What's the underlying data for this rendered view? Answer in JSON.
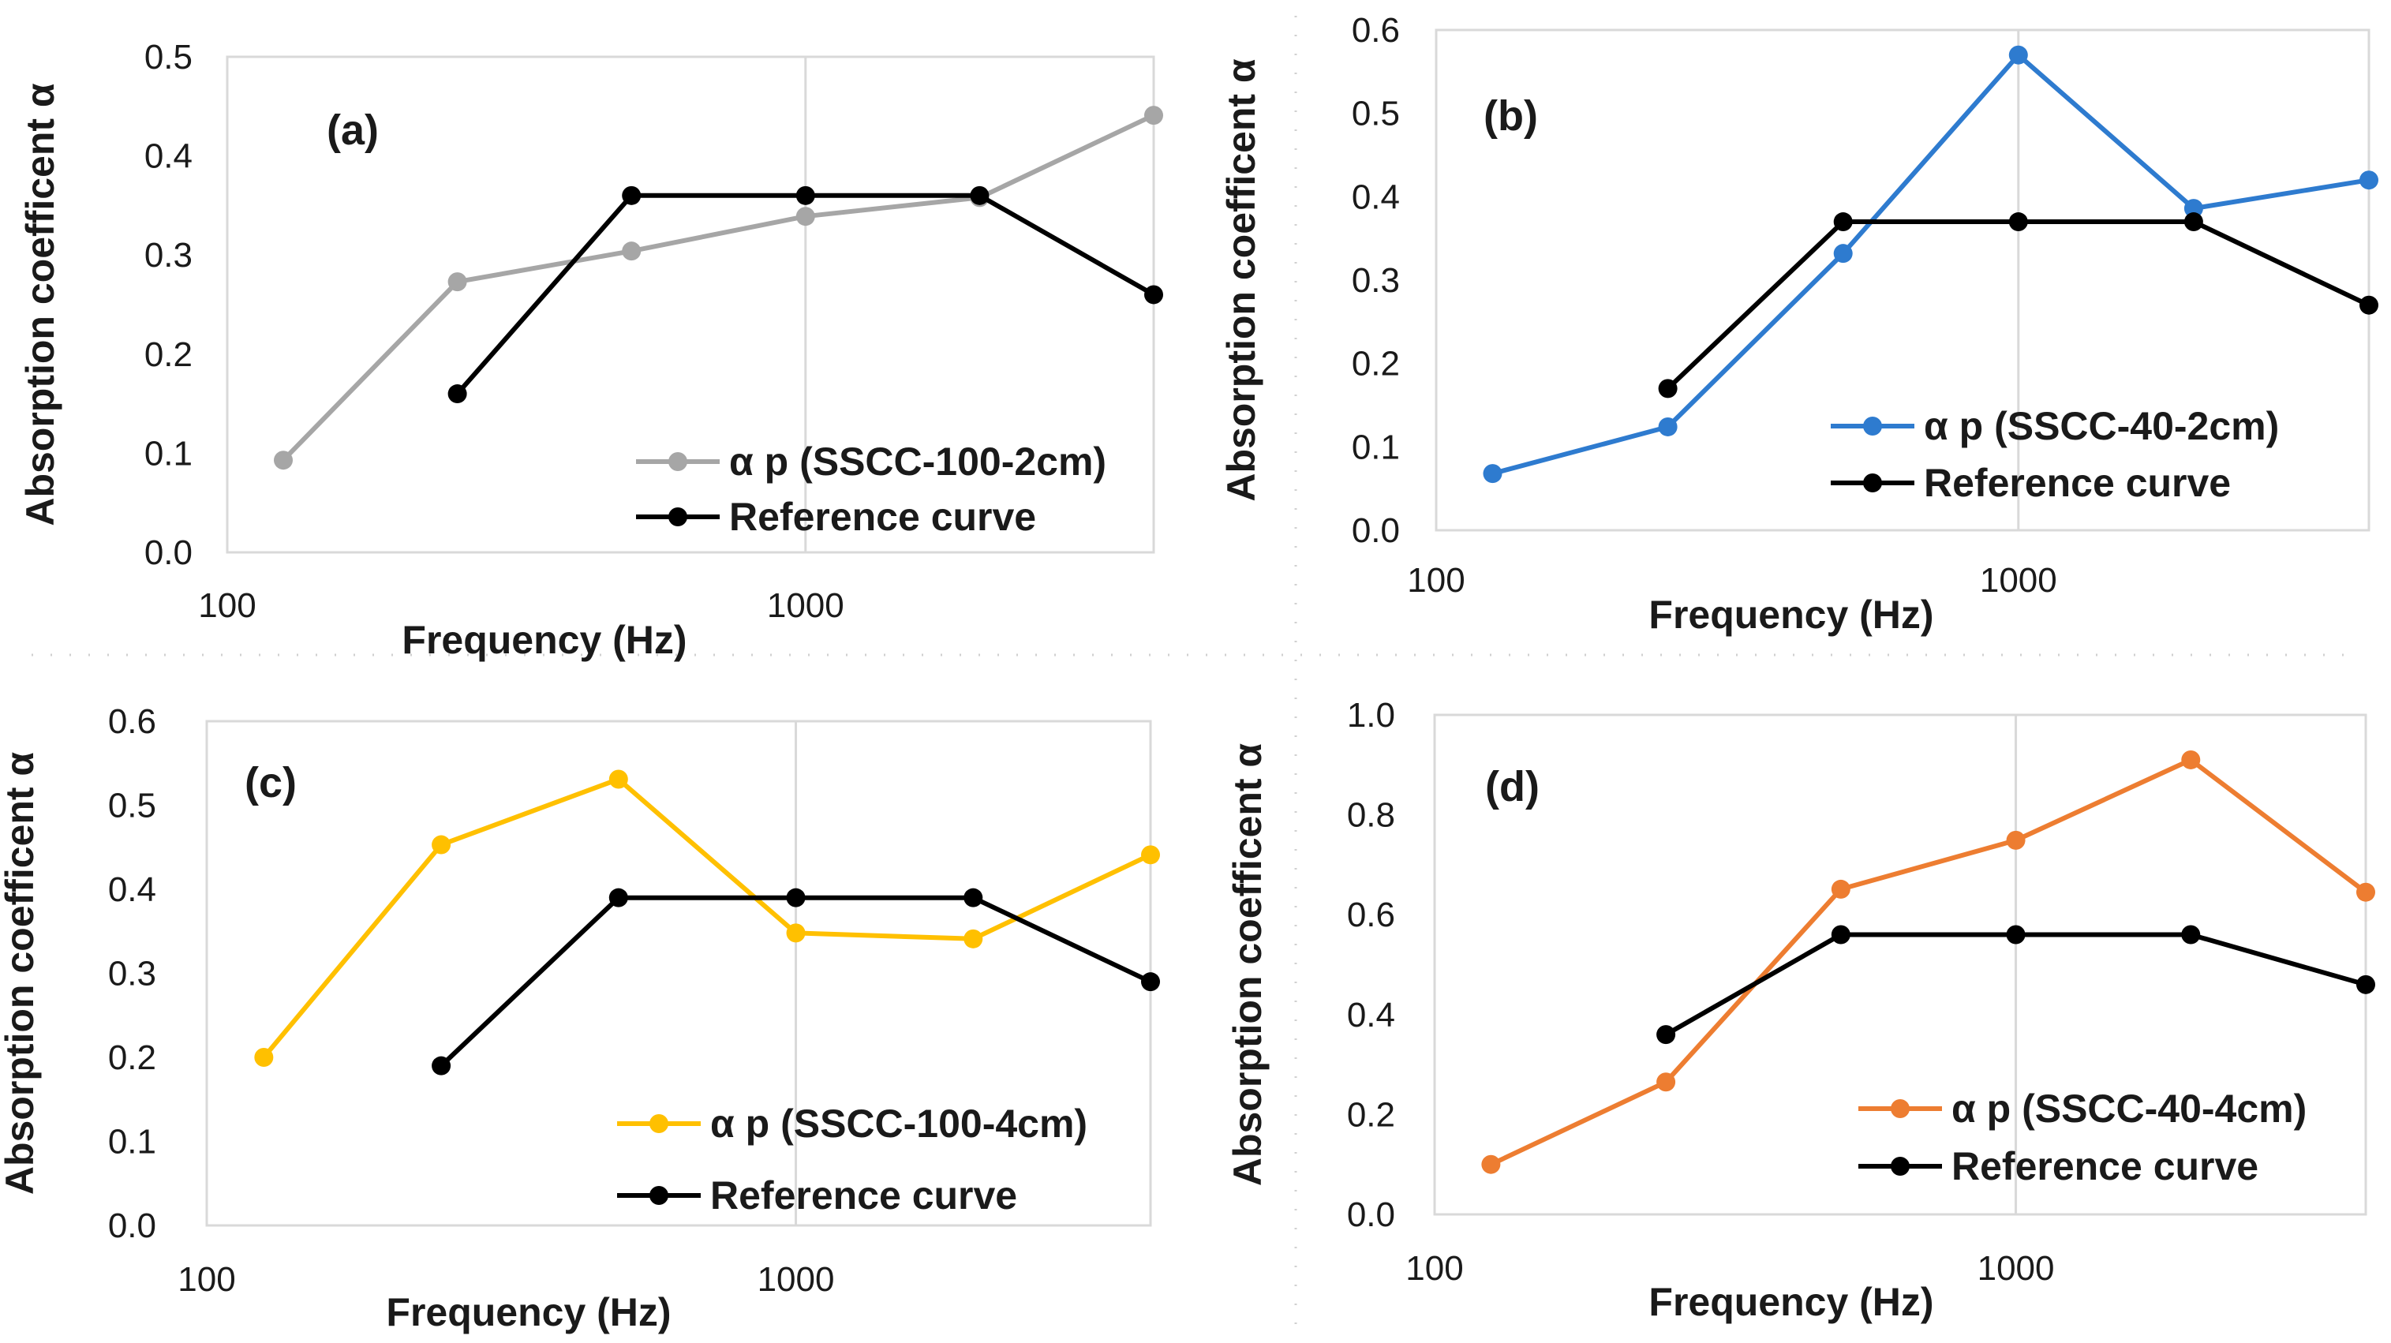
{
  "chart_data": [
    {
      "type": "line",
      "panel_label": "(a)",
      "xlabel": "Frequency (Hz)",
      "ylabel": "Absorption coefficent α",
      "xscale": "log",
      "xlim": [
        100,
        4000
      ],
      "ylim": [
        0,
        0.5
      ],
      "xticks": [
        {
          "v": 100,
          "label": "100"
        },
        {
          "v": 1000,
          "label": "1000"
        }
      ],
      "yticks": [
        {
          "v": 0.0,
          "label": "0.0"
        },
        {
          "v": 0.1,
          "label": "0.1"
        },
        {
          "v": 0.2,
          "label": "0.2"
        },
        {
          "v": 0.3,
          "label": "0.3"
        },
        {
          "v": 0.4,
          "label": "0.4"
        },
        {
          "v": 0.5,
          "label": "0.5"
        }
      ],
      "legend_position": "bottom-right",
      "series": [
        {
          "name": "α p (SSCC-100-2cm)",
          "color": "#A6A6A6",
          "x": [
            125,
            250,
            500,
            1000,
            2000,
            4000
          ],
          "values": [
            0.093,
            0.273,
            0.304,
            0.339,
            0.358,
            0.441
          ]
        },
        {
          "name": "Reference curve",
          "color": "#000000",
          "x": [
            250,
            500,
            1000,
            2000,
            4000
          ],
          "values": [
            0.16,
            0.36,
            0.36,
            0.36,
            0.26
          ]
        }
      ]
    },
    {
      "type": "line",
      "panel_label": "(b)",
      "xlabel": "Frequency (Hz)",
      "ylabel": "Absorption coefficent α",
      "xscale": "log",
      "xlim": [
        100,
        4000
      ],
      "ylim": [
        0,
        0.6
      ],
      "xticks": [
        {
          "v": 100,
          "label": "100"
        },
        {
          "v": 1000,
          "label": "1000"
        }
      ],
      "yticks": [
        {
          "v": 0.0,
          "label": "0.0"
        },
        {
          "v": 0.1,
          "label": "0.1"
        },
        {
          "v": 0.2,
          "label": "0.2"
        },
        {
          "v": 0.3,
          "label": "0.3"
        },
        {
          "v": 0.4,
          "label": "0.4"
        },
        {
          "v": 0.5,
          "label": "0.5"
        },
        {
          "v": 0.6,
          "label": "0.6"
        }
      ],
      "legend_position": "bottom-right",
      "series": [
        {
          "name": "α p (SSCC-40-2cm)",
          "color": "#2E7BCF",
          "x": [
            125,
            250,
            500,
            1000,
            2000,
            4000
          ],
          "values": [
            0.068,
            0.124,
            0.332,
            0.57,
            0.386,
            0.42
          ]
        },
        {
          "name": "Reference curve",
          "color": "#000000",
          "x": [
            250,
            500,
            1000,
            2000,
            4000
          ],
          "values": [
            0.17,
            0.37,
            0.37,
            0.37,
            0.27
          ]
        }
      ]
    },
    {
      "type": "line",
      "panel_label": "(c)",
      "xlabel": "Frequency (Hz)",
      "ylabel": "Absorption coefficent α",
      "xscale": "log",
      "xlim": [
        100,
        4000
      ],
      "ylim": [
        0,
        0.6
      ],
      "xticks": [
        {
          "v": 100,
          "label": "100"
        },
        {
          "v": 1000,
          "label": "1000"
        }
      ],
      "yticks": [
        {
          "v": 0.0,
          "label": "0.0"
        },
        {
          "v": 0.1,
          "label": "0.1"
        },
        {
          "v": 0.2,
          "label": "0.2"
        },
        {
          "v": 0.3,
          "label": "0.3"
        },
        {
          "v": 0.4,
          "label": "0.4"
        },
        {
          "v": 0.5,
          "label": "0.5"
        },
        {
          "v": 0.6,
          "label": "0.6"
        }
      ],
      "legend_position": "bottom-right",
      "series": [
        {
          "name": "α p (SSCC-100-4cm)",
          "color": "#FFC000",
          "x": [
            125,
            250,
            500,
            1000,
            2000,
            4000
          ],
          "values": [
            0.2,
            0.453,
            0.531,
            0.348,
            0.341,
            0.441
          ]
        },
        {
          "name": "Reference curve",
          "color": "#000000",
          "x": [
            250,
            500,
            1000,
            2000,
            4000
          ],
          "values": [
            0.19,
            0.39,
            0.39,
            0.39,
            0.29
          ]
        }
      ]
    },
    {
      "type": "line",
      "panel_label": "(d)",
      "xlabel": "Frequency (Hz)",
      "ylabel": "Absorption coefficent α",
      "xscale": "log",
      "xlim": [
        100,
        4000
      ],
      "ylim": [
        0,
        1.0
      ],
      "xticks": [
        {
          "v": 100,
          "label": "100"
        },
        {
          "v": 1000,
          "label": "1000"
        }
      ],
      "yticks": [
        {
          "v": 0.0,
          "label": "0.0"
        },
        {
          "v": 0.2,
          "label": "0.2"
        },
        {
          "v": 0.4,
          "label": "0.4"
        },
        {
          "v": 0.6,
          "label": "0.6"
        },
        {
          "v": 0.8,
          "label": "0.8"
        },
        {
          "v": 1.0,
          "label": "1.0"
        }
      ],
      "legend_position": "bottom-right",
      "series": [
        {
          "name": "α p (SSCC-40-4cm)",
          "color": "#ED7D31",
          "x": [
            125,
            250,
            500,
            1000,
            2000,
            4000
          ],
          "values": [
            0.1,
            0.265,
            0.651,
            0.749,
            0.91,
            0.645
          ]
        },
        {
          "name": "Reference curve",
          "color": "#000000",
          "x": [
            250,
            500,
            1000,
            2000,
            4000
          ],
          "values": [
            0.36,
            0.56,
            0.56,
            0.56,
            0.46
          ]
        }
      ]
    }
  ]
}
